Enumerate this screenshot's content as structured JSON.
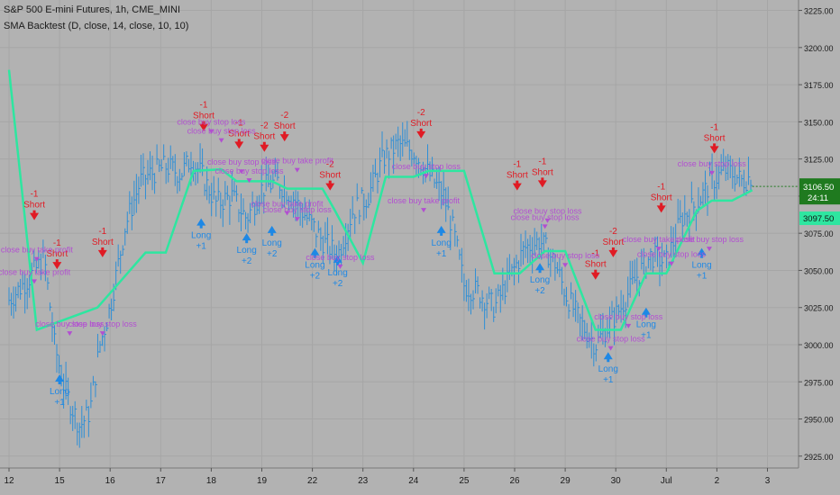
{
  "legend": {
    "symbol_line": "S&P 500 E-mini Futures, 1h, CME_MINI",
    "study_line": "SMA Backtest (D, close, 14, close, 10, 10)"
  },
  "price_badges": {
    "last_price": "3106.50",
    "countdown": "24:11",
    "sma_value": "3097.50"
  },
  "colors": {
    "background": "#b2b2b2",
    "grid": "#a6a6a6",
    "price_bars": "#2f8fd6",
    "sma_line": "#2ee6a0",
    "short_marker": "#e01b24",
    "long_marker": "#1e88e5",
    "exit_label": "#b24fd1",
    "last_price_badge": "#1f7a1f",
    "sma_badge": "#2ee6a0"
  },
  "chart_data": {
    "type": "line",
    "ylim": [
      2917,
      3232
    ],
    "x_range": [
      0,
      16.7
    ],
    "yticks": [
      2925,
      2950,
      2975,
      3000,
      3025,
      3050,
      3075,
      3100,
      3125,
      3150,
      3175,
      3200,
      3225
    ],
    "ytick_labels": [
      "2925.00",
      "2950.00",
      "2975.00",
      "3000.00",
      "3025.00",
      "3050.00",
      "3075.00",
      "3100.00",
      "3125.00",
      "3150.00",
      "3175.00",
      "3200.00",
      "3225.00"
    ],
    "xticks": [
      {
        "x": 0,
        "label": "12"
      },
      {
        "x": 1,
        "label": "15"
      },
      {
        "x": 2,
        "label": "16"
      },
      {
        "x": 3,
        "label": "17"
      },
      {
        "x": 4,
        "label": "18"
      },
      {
        "x": 5,
        "label": "19"
      },
      {
        "x": 6,
        "label": "22"
      },
      {
        "x": 7,
        "label": "23"
      },
      {
        "x": 8,
        "label": "24"
      },
      {
        "x": 9,
        "label": "25"
      },
      {
        "x": 10,
        "label": "26"
      },
      {
        "x": 11,
        "label": "29"
      },
      {
        "x": 12,
        "label": "30"
      },
      {
        "x": 13,
        "label": "Jul"
      },
      {
        "x": 14,
        "label": "2"
      },
      {
        "x": 15,
        "label": "3"
      }
    ],
    "grid": true,
    "series": [
      {
        "kind": "price",
        "points": [
          [
            0,
            3030
          ],
          [
            0.4,
            3045
          ],
          [
            0.7,
            3058
          ],
          [
            0.9,
            3000
          ],
          [
            1.1,
            2970
          ],
          [
            1.4,
            2945
          ],
          [
            1.6,
            2955
          ],
          [
            1.8,
            3000
          ],
          [
            2.0,
            3025
          ],
          [
            2.3,
            3080
          ],
          [
            2.6,
            3110
          ],
          [
            2.8,
            3115
          ],
          [
            3.1,
            3120
          ],
          [
            3.4,
            3115
          ],
          [
            3.6,
            3125
          ],
          [
            3.8,
            3115
          ],
          [
            4.1,
            3095
          ],
          [
            4.4,
            3100
          ],
          [
            4.7,
            3085
          ],
          [
            5.0,
            3105
          ],
          [
            5.3,
            3110
          ],
          [
            5.6,
            3100
          ],
          [
            5.9,
            3085
          ],
          [
            6.2,
            3070
          ],
          [
            6.5,
            3060
          ],
          [
            6.8,
            3090
          ],
          [
            7.1,
            3100
          ],
          [
            7.4,
            3125
          ],
          [
            7.7,
            3135
          ],
          [
            8.0,
            3130
          ],
          [
            8.3,
            3115
          ],
          [
            8.6,
            3100
          ],
          [
            8.8,
            3075
          ],
          [
            9.0,
            3040
          ],
          [
            9.3,
            3035
          ],
          [
            9.6,
            3025
          ],
          [
            9.9,
            3045
          ],
          [
            10.2,
            3065
          ],
          [
            10.5,
            3070
          ],
          [
            10.8,
            3055
          ],
          [
            11.0,
            3035
          ],
          [
            11.3,
            3015
          ],
          [
            11.6,
            3000
          ],
          [
            11.9,
            3015
          ],
          [
            12.1,
            3025
          ],
          [
            12.4,
            3045
          ],
          [
            12.7,
            3060
          ],
          [
            13.0,
            3055
          ],
          [
            13.3,
            3085
          ],
          [
            13.6,
            3095
          ],
          [
            13.9,
            3110
          ],
          [
            14.2,
            3118
          ],
          [
            14.5,
            3110
          ],
          [
            14.7,
            3114
          ]
        ]
      },
      {
        "name": "SMA",
        "kind": "sma",
        "points": [
          [
            0,
            3185
          ],
          [
            0.55,
            3010
          ],
          [
            1.75,
            3025
          ],
          [
            2.7,
            3062
          ],
          [
            3.1,
            3062
          ],
          [
            3.65,
            3117
          ],
          [
            4.2,
            3118
          ],
          [
            4.5,
            3110
          ],
          [
            5.2,
            3110
          ],
          [
            5.5,
            3105
          ],
          [
            6.2,
            3105
          ],
          [
            6.45,
            3090
          ],
          [
            7.0,
            3055
          ],
          [
            7.45,
            3113
          ],
          [
            8.0,
            3113
          ],
          [
            8.3,
            3117
          ],
          [
            9.0,
            3117
          ],
          [
            9.6,
            3048
          ],
          [
            10.1,
            3048
          ],
          [
            10.6,
            3063
          ],
          [
            11.0,
            3063
          ],
          [
            11.6,
            3010
          ],
          [
            12.1,
            3010
          ],
          [
            12.6,
            3048
          ],
          [
            13.0,
            3048
          ],
          [
            13.6,
            3090
          ],
          [
            13.9,
            3097
          ],
          [
            14.3,
            3097
          ],
          [
            14.7,
            3104
          ]
        ]
      }
    ],
    "annotations": [
      {
        "type": "short",
        "x": 0.5,
        "y": 3085,
        "qty": "-1"
      },
      {
        "type": "short",
        "x": 0.95,
        "y": 3052,
        "qty": "-1"
      },
      {
        "type": "short",
        "x": 1.85,
        "y": 3060,
        "qty": "-1"
      },
      {
        "type": "short",
        "x": 3.85,
        "y": 3145,
        "qty": "-1"
      },
      {
        "type": "short",
        "x": 4.55,
        "y": 3133,
        "qty": "-1"
      },
      {
        "type": "short",
        "x": 5.05,
        "y": 3131,
        "qty": "-2"
      },
      {
        "type": "short",
        "x": 5.45,
        "y": 3138,
        "qty": "-2"
      },
      {
        "type": "short",
        "x": 6.35,
        "y": 3105,
        "qty": "-2"
      },
      {
        "type": "short",
        "x": 8.15,
        "y": 3140,
        "qty": "-2"
      },
      {
        "type": "short",
        "x": 10.05,
        "y": 3105,
        "qty": "-1"
      },
      {
        "type": "short",
        "x": 10.55,
        "y": 3107,
        "qty": "-1"
      },
      {
        "type": "short",
        "x": 11.6,
        "y": 3045,
        "qty": "-1"
      },
      {
        "type": "short",
        "x": 11.95,
        "y": 3060,
        "qty": "-2"
      },
      {
        "type": "short",
        "x": 12.9,
        "y": 3090,
        "qty": "-1"
      },
      {
        "type": "short",
        "x": 13.95,
        "y": 3130,
        "qty": "-1"
      },
      {
        "type": "long",
        "x": 1.0,
        "y": 2980,
        "qty": "+1"
      },
      {
        "type": "long",
        "x": 3.8,
        "y": 3085,
        "qty": "+1"
      },
      {
        "type": "long",
        "x": 4.7,
        "y": 3075,
        "qty": "+2"
      },
      {
        "type": "long",
        "x": 5.2,
        "y": 3080,
        "qty": "+2"
      },
      {
        "type": "long",
        "x": 6.05,
        "y": 3065,
        "qty": "+2"
      },
      {
        "type": "long",
        "x": 6.5,
        "y": 3060,
        "qty": "+2"
      },
      {
        "type": "long",
        "x": 8.55,
        "y": 3080,
        "qty": "+1"
      },
      {
        "type": "long",
        "x": 10.5,
        "y": 3055,
        "qty": "+2"
      },
      {
        "type": "long",
        "x": 11.85,
        "y": 2995,
        "qty": "+1"
      },
      {
        "type": "long",
        "x": 12.6,
        "y": 3025,
        "qty": "+1"
      },
      {
        "type": "long",
        "x": 13.7,
        "y": 3065,
        "qty": "+1"
      },
      {
        "type": "exit",
        "x": 0.55,
        "y": 3062,
        "text": "close buy take profit"
      },
      {
        "type": "exit",
        "x": 0.5,
        "y": 3047,
        "text": "close buy take profit"
      },
      {
        "type": "exit",
        "x": 1.2,
        "y": 3012,
        "text": "close buy stop loss"
      },
      {
        "type": "exit",
        "x": 1.85,
        "y": 3012,
        "text": "close buy stop loss"
      },
      {
        "type": "exit",
        "x": 4.0,
        "y": 3148,
        "text": "close buy stop loss"
      },
      {
        "type": "exit",
        "x": 4.2,
        "y": 3142,
        "text": "close buy stop loss"
      },
      {
        "type": "exit",
        "x": 4.6,
        "y": 3121,
        "text": "close buy stop loss"
      },
      {
        "type": "exit",
        "x": 4.75,
        "y": 3115,
        "text": "close buy stop loss"
      },
      {
        "type": "exit",
        "x": 5.7,
        "y": 3122,
        "text": "close buy take profit"
      },
      {
        "type": "exit",
        "x": 5.5,
        "y": 3093,
        "text": "close buy take profit"
      },
      {
        "type": "exit",
        "x": 5.7,
        "y": 3089,
        "text": "close buy stop loss"
      },
      {
        "type": "exit",
        "x": 6.55,
        "y": 3057,
        "text": "close buy stop loss"
      },
      {
        "type": "exit",
        "x": 8.25,
        "y": 3118,
        "text": "close buy stop loss"
      },
      {
        "type": "exit",
        "x": 8.2,
        "y": 3095,
        "text": "close buy take profit"
      },
      {
        "type": "exit",
        "x": 10.65,
        "y": 3088,
        "text": "close buy stop loss"
      },
      {
        "type": "exit",
        "x": 10.6,
        "y": 3084,
        "text": "close buy stop loss"
      },
      {
        "type": "exit",
        "x": 11.0,
        "y": 3058,
        "text": "close buy stop loss"
      },
      {
        "type": "exit",
        "x": 11.9,
        "y": 3002,
        "text": "close buy stop loss"
      },
      {
        "type": "exit",
        "x": 12.25,
        "y": 3017,
        "text": "close buy stop loss"
      },
      {
        "type": "exit",
        "x": 12.85,
        "y": 3069,
        "text": "close buy take profit"
      },
      {
        "type": "exit",
        "x": 13.1,
        "y": 3059,
        "text": "close buy stop loss"
      },
      {
        "type": "exit",
        "x": 13.85,
        "y": 3069,
        "text": "close buy stop loss"
      },
      {
        "type": "exit",
        "x": 13.9,
        "y": 3120,
        "text": "close buy stop loss"
      }
    ]
  }
}
